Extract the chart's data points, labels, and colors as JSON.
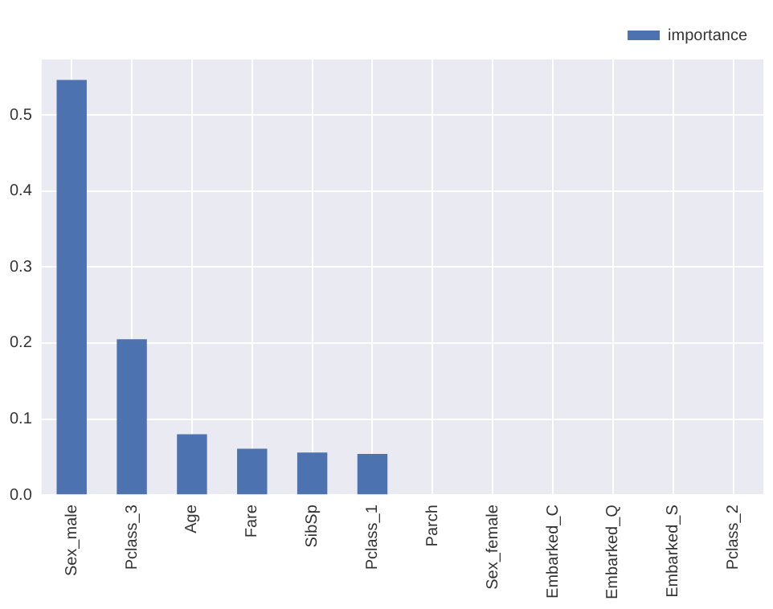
{
  "chart_data": {
    "type": "bar",
    "categories": [
      "Sex_male",
      "Pclass_3",
      "Age",
      "Fare",
      "SibSp",
      "Pclass_1",
      "Parch",
      "Sex_female",
      "Embarked_C",
      "Embarked_Q",
      "Embarked_S",
      "Pclass_2"
    ],
    "series": [
      {
        "name": "importance",
        "color": "#4c72b0",
        "values": [
          0.546,
          0.205,
          0.08,
          0.061,
          0.056,
          0.054,
          0,
          0,
          0,
          0,
          0,
          0
        ]
      }
    ],
    "ylim": [
      0,
      0.573
    ],
    "yticks": [
      {
        "value": 0,
        "label": "0.0"
      },
      {
        "value": 0.1,
        "label": "0.1"
      },
      {
        "value": 0.2,
        "label": "0.2"
      },
      {
        "value": 0.3,
        "label": "0.3"
      },
      {
        "value": 0.4,
        "label": "0.4"
      },
      {
        "value": 0.5,
        "label": "0.5"
      }
    ],
    "grid": true,
    "legend": "top right"
  }
}
